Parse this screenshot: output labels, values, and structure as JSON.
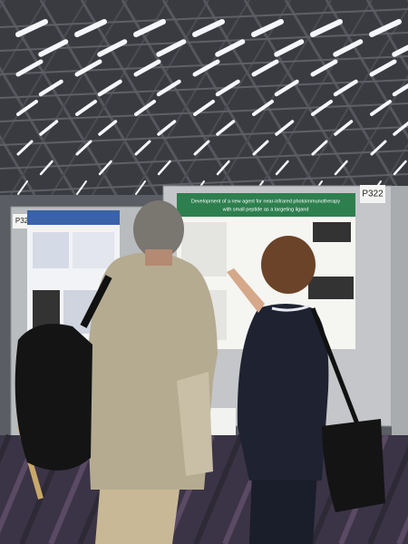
{
  "labels": {
    "board_right": "P322",
    "board_left": "P32"
  },
  "poster": {
    "title": "Development of a new agent for near-infrared photoimmunotherapy",
    "subtitle": "with small peptide as a targeting ligand"
  }
}
